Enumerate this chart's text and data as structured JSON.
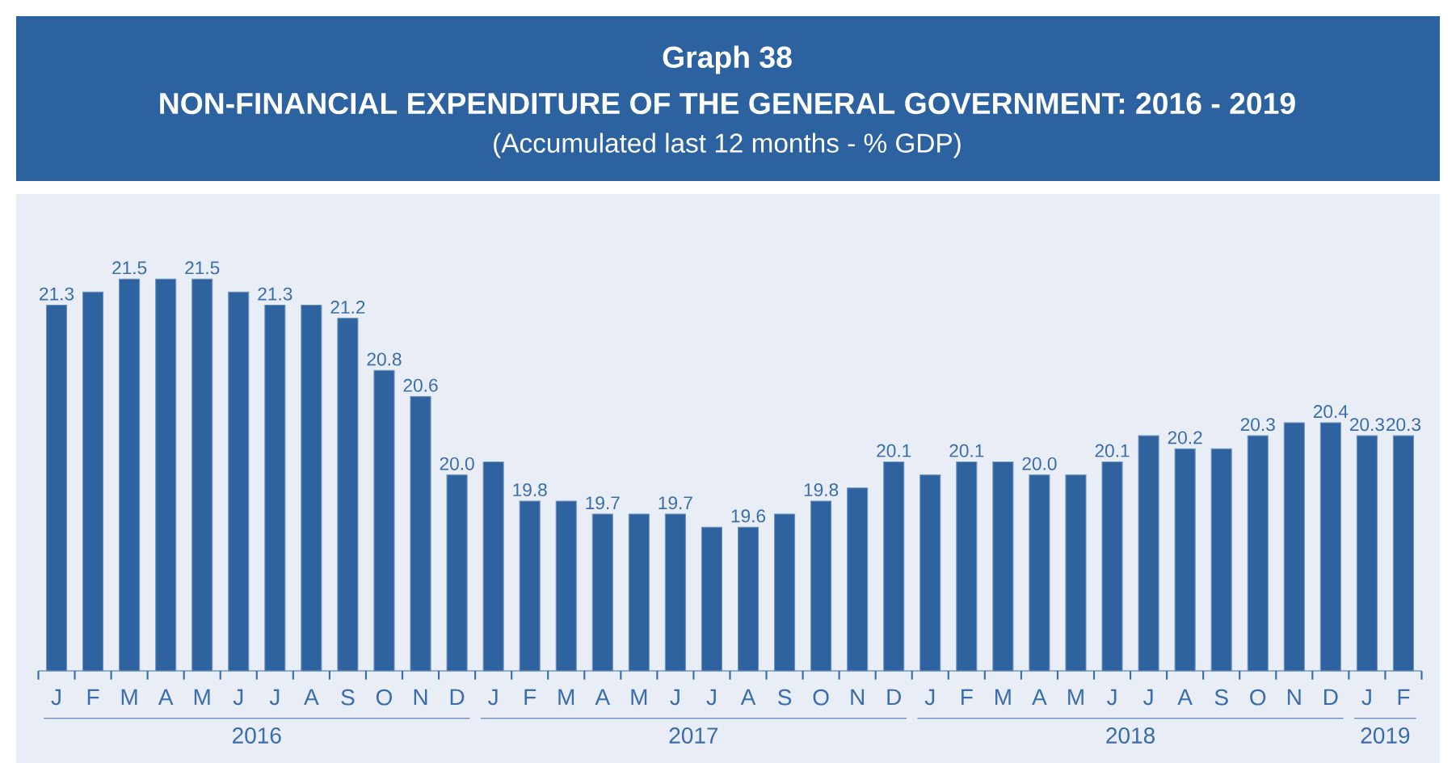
{
  "chart_data": {
    "type": "bar",
    "title": "Graph 38",
    "subtitle": "NON-FINANCIAL EXPENDITURE OF THE GENERAL GOVERNMENT:  2016 - 2019",
    "annotations": [
      "(Accumulated last 12 months - % GDP)",
      "2016",
      "2017",
      "2018",
      "2019"
    ],
    "categories": [
      "J",
      "F",
      "M",
      "A",
      "M",
      "J",
      "J",
      "A",
      "S",
      "O",
      "N",
      "D",
      "J",
      "F",
      "M",
      "A",
      "M",
      "J",
      "J",
      "A",
      "S",
      "O",
      "N",
      "D",
      "J",
      "F",
      "M",
      "A",
      "M",
      "J",
      "J",
      "A",
      "S",
      "O",
      "N",
      "D",
      "J",
      "F"
    ],
    "values": [
      21.3,
      21.4,
      21.5,
      21.5,
      21.5,
      21.4,
      21.3,
      21.3,
      21.2,
      20.8,
      20.6,
      20.0,
      20.1,
      19.8,
      19.8,
      19.7,
      19.7,
      19.7,
      19.6,
      19.6,
      19.7,
      19.8,
      19.9,
      20.1,
      20.0,
      20.1,
      20.1,
      20.0,
      20.0,
      20.1,
      20.3,
      20.2,
      20.2,
      20.3,
      20.4,
      20.4,
      20.3,
      20.3
    ],
    "value_labels": [
      "21.3",
      null,
      "21.5",
      null,
      "21.5",
      null,
      "21.3",
      null,
      "21.2",
      "20.8",
      "20.6",
      "20.0",
      null,
      "19.8",
      null,
      "19.7",
      null,
      "19.7",
      null,
      "19.6",
      null,
      "19.8",
      null,
      "20.1",
      null,
      "20.1",
      null,
      "20.0",
      null,
      "20.1",
      null,
      "20.2",
      null,
      "20.3",
      null,
      "20.4",
      "20.3",
      "20.3"
    ],
    "color": "#2e63a0",
    "ylim": [
      18.5,
      21.5
    ],
    "tick_labels": "x"
  }
}
